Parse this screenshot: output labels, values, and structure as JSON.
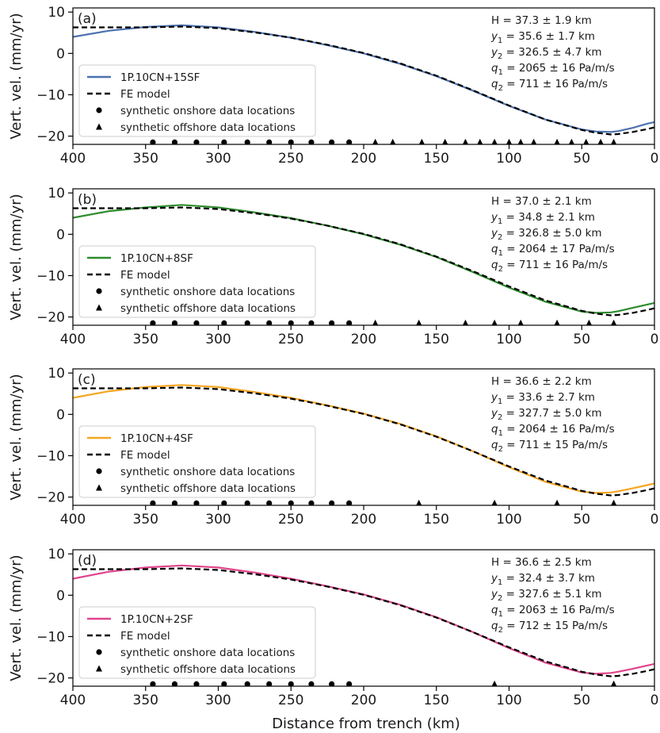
{
  "figure": {
    "xlabel": "Distance from trench (km)",
    "ylabel": "Vert. vel. (mm/yr)",
    "x_ticks": [
      "400",
      "350",
      "300",
      "250",
      "200",
      "150",
      "100",
      "50",
      "0"
    ],
    "y_ticks": [
      "10",
      "0",
      "−10",
      "−20"
    ]
  },
  "legend_common": {
    "fe_label": "FE model",
    "onshore_label": "synthetic onshore data locations",
    "offshore_label": "synthetic offshore data locations"
  },
  "colors": {
    "a": "#4c72b0",
    "b": "#2e8b2e",
    "c": "#f5a623",
    "d": "#e0448c",
    "fe": "#000000"
  },
  "panels": [
    {
      "letter": "(a)",
      "model_label": "1P.10CN+15SF",
      "params": [
        {
          "sym": "H",
          "sub": "",
          "val": " = 37.3   ± 1.9 km"
        },
        {
          "sym": "y",
          "sub": "1",
          "val": " = 35.6   ± 1.7 km"
        },
        {
          "sym": "y",
          "sub": "2",
          "val": " = 326.5 ± 4.7 km"
        },
        {
          "sym": "q",
          "sub": "1",
          "val": " = 2065  ±  16 Pa/m/s"
        },
        {
          "sym": "q",
          "sub": "2",
          "val": " = 711    ±  16 Pa/m/s"
        }
      ]
    },
    {
      "letter": "(b)",
      "model_label": "1P.10CN+8SF",
      "params": [
        {
          "sym": "H",
          "sub": "",
          "val": " = 37.0   ± 2.1 km"
        },
        {
          "sym": "y",
          "sub": "1",
          "val": " = 34.8   ± 2.1 km"
        },
        {
          "sym": "y",
          "sub": "2",
          "val": " = 326.8 ± 5.0 km"
        },
        {
          "sym": "q",
          "sub": "1",
          "val": " = 2064  ±  17 Pa/m/s"
        },
        {
          "sym": "q",
          "sub": "2",
          "val": " = 711    ±  16 Pa/m/s"
        }
      ]
    },
    {
      "letter": "(c)",
      "model_label": "1P.10CN+4SF",
      "params": [
        {
          "sym": "H",
          "sub": "",
          "val": " = 36.6   ± 2.2 km"
        },
        {
          "sym": "y",
          "sub": "1",
          "val": " = 33.6   ± 2.7 km"
        },
        {
          "sym": "y",
          "sub": "2",
          "val": " = 327.7 ± 5.0 km"
        },
        {
          "sym": "q",
          "sub": "1",
          "val": " = 2064  ±  16 Pa/m/s"
        },
        {
          "sym": "q",
          "sub": "2",
          "val": " = 711    ±  15 Pa/m/s"
        }
      ]
    },
    {
      "letter": "(d)",
      "model_label": "1P.10CN+2SF",
      "params": [
        {
          "sym": "H",
          "sub": "",
          "val": " = 36.6   ± 2.5 km"
        },
        {
          "sym": "y",
          "sub": "1",
          "val": " = 32.4   ± 3.7 km"
        },
        {
          "sym": "y",
          "sub": "2",
          "val": " = 327.6 ± 5.1 km"
        },
        {
          "sym": "q",
          "sub": "1",
          "val": " = 2063  ±  16 Pa/m/s"
        },
        {
          "sym": "q",
          "sub": "2",
          "val": " = 712    ±  15 Pa/m/s"
        }
      ]
    }
  ],
  "chart_data": [
    {
      "type": "line",
      "panel": "(a)",
      "xlabel": "",
      "ylabel": "Vert. vel. (mm/yr)",
      "xlim": [
        400,
        0
      ],
      "ylim": [
        -22,
        11
      ],
      "series": [
        {
          "name": "1P.10CN+15SF",
          "x": [
            400,
            375,
            350,
            325,
            300,
            275,
            250,
            225,
            200,
            175,
            150,
            125,
            100,
            75,
            50,
            40,
            30,
            25,
            15,
            5,
            0
          ],
          "y": [
            4.0,
            5.5,
            6.4,
            6.8,
            6.3,
            5.2,
            3.8,
            2.0,
            0.0,
            -2.5,
            -5.5,
            -9.0,
            -12.7,
            -16.0,
            -18.4,
            -18.9,
            -19.0,
            -18.8,
            -18.0,
            -17.0,
            -16.6
          ]
        },
        {
          "name": "FE model",
          "x": [
            400,
            375,
            350,
            325,
            300,
            275,
            250,
            225,
            200,
            175,
            150,
            125,
            100,
            75,
            50,
            40,
            30,
            25,
            15,
            5,
            0
          ],
          "y": [
            6.3,
            6.3,
            6.3,
            6.5,
            6.1,
            5.1,
            3.8,
            2.1,
            0.1,
            -2.4,
            -5.4,
            -8.9,
            -12.6,
            -16.0,
            -18.5,
            -19.2,
            -19.6,
            -19.5,
            -19.0,
            -18.3,
            -17.9
          ]
        }
      ],
      "onshore_x": [
        345,
        330,
        315,
        296,
        280,
        265,
        250,
        236,
        222,
        210
      ],
      "offshore_x": [
        192,
        180,
        160,
        144,
        130,
        120,
        110,
        100,
        92,
        83,
        67,
        57,
        47,
        37,
        28
      ],
      "markers_y": -21.5
    },
    {
      "type": "line",
      "panel": "(b)",
      "xlabel": "",
      "ylabel": "Vert. vel. (mm/yr)",
      "xlim": [
        400,
        0
      ],
      "ylim": [
        -22,
        11
      ],
      "series": [
        {
          "name": "1P.10CN+8SF",
          "x": [
            400,
            375,
            350,
            325,
            300,
            275,
            250,
            225,
            200,
            175,
            150,
            125,
            100,
            75,
            50,
            40,
            30,
            25,
            15,
            5,
            0
          ],
          "y": [
            4.0,
            5.6,
            6.5,
            7.1,
            6.5,
            5.3,
            3.9,
            2.1,
            0.0,
            -2.5,
            -5.5,
            -9.1,
            -12.9,
            -16.3,
            -18.7,
            -19.0,
            -18.9,
            -18.6,
            -17.8,
            -17.0,
            -16.6
          ]
        },
        {
          "name": "FE model",
          "x": [
            400,
            375,
            350,
            325,
            300,
            275,
            250,
            225,
            200,
            175,
            150,
            125,
            100,
            75,
            50,
            40,
            30,
            25,
            15,
            5,
            0
          ],
          "y": [
            6.3,
            6.3,
            6.3,
            6.5,
            6.1,
            5.1,
            3.8,
            2.1,
            0.1,
            -2.4,
            -5.4,
            -8.9,
            -12.6,
            -16.0,
            -18.5,
            -19.2,
            -19.6,
            -19.5,
            -19.0,
            -18.3,
            -17.9
          ]
        }
      ],
      "onshore_x": [
        345,
        330,
        315,
        296,
        280,
        265,
        250,
        236,
        222,
        210
      ],
      "offshore_x": [
        192,
        162,
        130,
        110,
        92,
        67,
        45,
        28
      ],
      "markers_y": -21.5
    },
    {
      "type": "line",
      "panel": "(c)",
      "xlabel": "",
      "ylabel": "Vert. vel. (mm/yr)",
      "xlim": [
        400,
        0
      ],
      "ylim": [
        -22,
        11
      ],
      "series": [
        {
          "name": "1P.10CN+4SF",
          "x": [
            400,
            375,
            350,
            325,
            300,
            275,
            250,
            225,
            200,
            175,
            150,
            125,
            100,
            75,
            50,
            40,
            30,
            25,
            15,
            5,
            0
          ],
          "y": [
            4.0,
            5.6,
            6.6,
            7.1,
            6.6,
            5.4,
            4.0,
            2.2,
            0.2,
            -2.3,
            -5.3,
            -8.9,
            -12.8,
            -16.3,
            -18.7,
            -19.0,
            -18.9,
            -18.6,
            -17.9,
            -17.1,
            -16.7
          ]
        },
        {
          "name": "FE model",
          "x": [
            400,
            375,
            350,
            325,
            300,
            275,
            250,
            225,
            200,
            175,
            150,
            125,
            100,
            75,
            50,
            40,
            30,
            25,
            15,
            5,
            0
          ],
          "y": [
            6.3,
            6.3,
            6.3,
            6.5,
            6.1,
            5.1,
            3.8,
            2.1,
            0.1,
            -2.4,
            -5.4,
            -8.9,
            -12.6,
            -16.0,
            -18.5,
            -19.2,
            -19.6,
            -19.5,
            -19.0,
            -18.3,
            -17.9
          ]
        }
      ],
      "onshore_x": [
        345,
        330,
        315,
        296,
        280,
        265,
        250,
        236,
        222,
        210
      ],
      "offshore_x": [
        162,
        110,
        67,
        28
      ],
      "markers_y": -21.5
    },
    {
      "type": "line",
      "panel": "(d)",
      "xlabel": "Distance from trench (km)",
      "ylabel": "Vert. vel. (mm/yr)",
      "xlim": [
        400,
        0
      ],
      "ylim": [
        -22,
        11
      ],
      "series": [
        {
          "name": "1P.10CN+2SF",
          "x": [
            400,
            375,
            350,
            325,
            300,
            275,
            250,
            225,
            200,
            175,
            150,
            125,
            100,
            75,
            50,
            40,
            30,
            25,
            15,
            5,
            0
          ],
          "y": [
            4.0,
            5.7,
            6.7,
            7.2,
            6.7,
            5.5,
            4.0,
            2.2,
            0.2,
            -2.3,
            -5.3,
            -8.9,
            -12.8,
            -16.3,
            -18.7,
            -19.0,
            -18.8,
            -18.5,
            -17.8,
            -17.0,
            -16.6
          ]
        },
        {
          "name": "FE model",
          "x": [
            400,
            375,
            350,
            325,
            300,
            275,
            250,
            225,
            200,
            175,
            150,
            125,
            100,
            75,
            50,
            40,
            30,
            25,
            15,
            5,
            0
          ],
          "y": [
            6.3,
            6.3,
            6.3,
            6.5,
            6.1,
            5.1,
            3.8,
            2.1,
            0.1,
            -2.4,
            -5.4,
            -8.9,
            -12.6,
            -16.0,
            -18.5,
            -19.2,
            -19.6,
            -19.5,
            -19.0,
            -18.3,
            -17.9
          ]
        }
      ],
      "onshore_x": [
        345,
        330,
        315,
        296,
        280,
        265,
        250,
        236,
        222,
        210
      ],
      "offshore_x": [
        110,
        28
      ],
      "markers_y": -21.5
    }
  ]
}
